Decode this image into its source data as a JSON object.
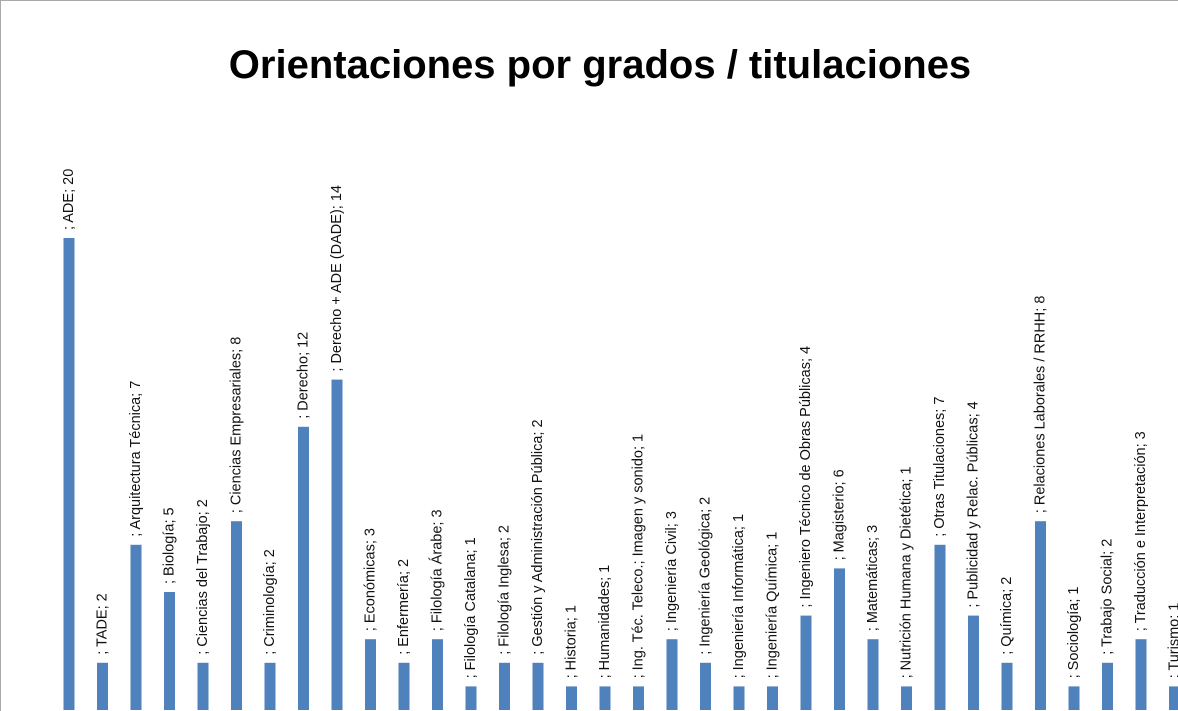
{
  "chart_data": {
    "type": "bar",
    "title": "Orientaciones por grados / titulaciones",
    "color": "#4f81bd",
    "values": [
      20,
      2,
      7,
      5,
      2,
      8,
      2,
      12,
      14,
      3,
      2,
      3,
      1,
      2,
      2,
      1,
      1,
      1,
      3,
      2,
      1,
      1,
      4,
      6,
      3,
      1,
      7,
      4,
      2,
      8,
      1,
      2,
      3,
      1
    ],
    "value_labels": [
      "; ADE; 20",
      "; TADE; 2",
      "; Arquitectura Técnica; 7",
      "; Biología; 5",
      "; Ciencias del Trabajo; 2",
      "; Ciencias Empresariales; 8",
      "; Criminología; 2",
      "; Derecho; 12",
      "; Derecho + ADE (DADE); 14",
      "; Económicas; 3",
      "; Enfermería; 2",
      "; Filología Árabe; 3",
      "; Filología Catalana; 1",
      "; Filología Inglesa; 2",
      "; Gestión y Administración Pública; 2",
      "; Historia; 1",
      "; Humanidades; 1",
      "; Ing. Téc. Teleco.; Imagen y sonido; 1",
      "; Ingeniería Civil; 3",
      "; Ingeniería Geológica; 2",
      "; Ingeniería Informática; 1",
      "; Ingeniería Química; 1",
      "; Ingeniero Técnico de Obras Públicas; 4",
      "; Magisterio; 6",
      "; Matemáticas; 3",
      "; Nutrición Humana y Dietética; 1",
      "; Otras Titulaciones; 7",
      "; Publicidad y Relac. Públicas; 4",
      "; Química; 2",
      "; Relaciones Laborales / RRHH; 8",
      "; Sociología; 1",
      "; Trabajo Social; 2",
      "; Traducción e Interpretación; 3",
      "; Turismo; 1"
    ]
  }
}
